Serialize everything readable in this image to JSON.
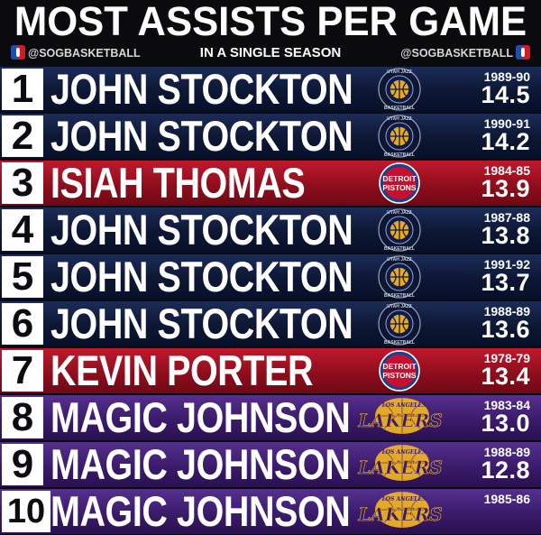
{
  "header": {
    "title": "MOST ASSISTS PER GAME",
    "subtitle": "IN A SINGLE SEASON",
    "handle_left": "@SOGBASKETBALL",
    "handle_right": "@SOGBASKETBALL"
  },
  "logos": {
    "jazz_top": "UTAH JAZZ",
    "jazz_bottom": "BASKETBALL",
    "pistons_line1": "DETROIT",
    "pistons_line2": "PISTONS",
    "lakers_top": "LOS ANGELES",
    "lakers_word": "LAKERS"
  },
  "colors": {
    "jazz_band": "#0d1733",
    "pistons_band": "#8e0e1d",
    "lakers_band": "#3b1b6b",
    "lakers_gold": "#f2b51f",
    "jazz_gold": "#e9a81f"
  },
  "rows": [
    {
      "rank": "1",
      "name": "JOHN STOCKTON",
      "team": "jazz",
      "season": "1989-90",
      "value": "14.5"
    },
    {
      "rank": "2",
      "name": "JOHN STOCKTON",
      "team": "jazz",
      "season": "1990-91",
      "value": "14.2"
    },
    {
      "rank": "3",
      "name": "ISIAH THOMAS",
      "team": "pistons",
      "season": "1984-85",
      "value": "13.9"
    },
    {
      "rank": "4",
      "name": "JOHN STOCKTON",
      "team": "jazz",
      "season": "1987-88",
      "value": "13.8"
    },
    {
      "rank": "5",
      "name": "JOHN STOCKTON",
      "team": "jazz",
      "season": "1991-92",
      "value": "13.7"
    },
    {
      "rank": "6",
      "name": "JOHN STOCKTON",
      "team": "jazz",
      "season": "1988-89",
      "value": "13.6"
    },
    {
      "rank": "7",
      "name": "KEVIN PORTER",
      "team": "pistons",
      "season": "1978-79",
      "value": "13.4"
    },
    {
      "rank": "8",
      "name": "MAGIC JOHNSON",
      "team": "lakers",
      "season": "1983-84",
      "value": "13.0"
    },
    {
      "rank": "9",
      "name": "MAGIC JOHNSON",
      "team": "lakers",
      "season": "1988-89",
      "value": "12.8"
    },
    {
      "rank": "10",
      "name": "MAGIC JOHNSON",
      "team": "lakers",
      "season": "1985-86",
      "value": ""
    }
  ]
}
